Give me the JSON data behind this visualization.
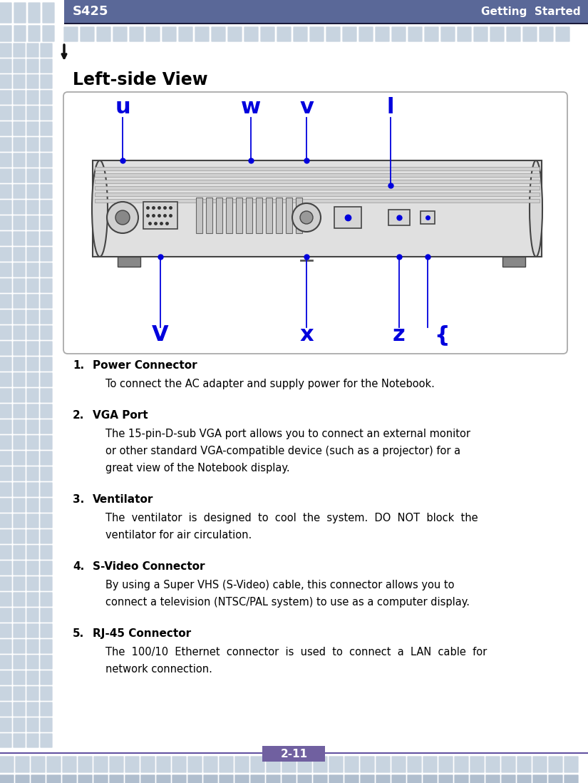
{
  "header_bg": "#5a6898",
  "header_text_left": "S425",
  "header_text_right": "Getting  Started",
  "header_text_color": "#ffffff",
  "tile_color_light": "#c8d4e0",
  "tile_color_dark": "#b0bece",
  "title": "Left-side View",
  "section_color": "#7060a0",
  "page_num": "2-11",
  "blue_label_color": "#0000dd",
  "arrow_color": "#111111",
  "items": [
    {
      "num": "1.",
      "title": "Power Connector",
      "lines": [
        "To connect the AC adapter and supply power for the Notebook."
      ]
    },
    {
      "num": "2.",
      "title": "VGA Port",
      "lines": [
        "The 15-pin-D-sub VGA port allows you to connect an external monitor",
        "or other standard VGA-compatible device (such as a projector) for a",
        "great view of the Notebook display."
      ]
    },
    {
      "num": "3.",
      "title": "Ventilator",
      "lines": [
        "The  ventilator  is  designed  to  cool  the  system.  DO  NOT  block  the",
        "ventilator for air circulation."
      ]
    },
    {
      "num": "4.",
      "title": "S-Video Connector",
      "lines": [
        "By using a Super VHS (S-Video) cable, this connector allows you to",
        "connect a television (NTSC/PAL system) to use as a computer display."
      ]
    },
    {
      "num": "5.",
      "title": "RJ-45 Connector",
      "lines": [
        "The  100/10  Ethernet  connector  is  used  to  connect  a  LAN  cable  for",
        "network connection."
      ]
    }
  ]
}
